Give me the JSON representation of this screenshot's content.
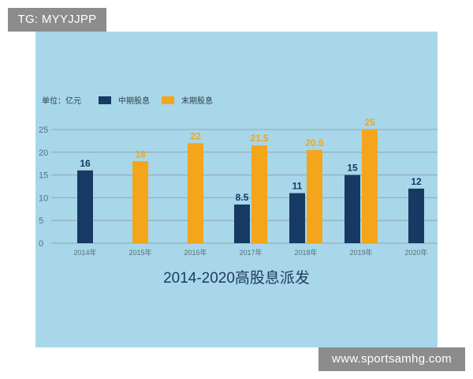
{
  "watermarks": {
    "top_left": "TG: MYYJJPP",
    "bottom_right": "www.sportsamhg.com"
  },
  "chart_data": {
    "type": "bar",
    "title": "2014-2020高股息派发",
    "unit_label": "单位：亿元",
    "categories": [
      "2014年",
      "2015年",
      "2016年",
      "2017年",
      "2018年",
      "2019年",
      "2020年"
    ],
    "series": [
      {
        "name": "中期股息",
        "values": [
          16,
          null,
          null,
          8.5,
          11,
          15,
          12
        ],
        "color": "#163a63",
        "label_color": "#163a63"
      },
      {
        "name": "末期股息",
        "values": [
          null,
          18,
          22,
          21.5,
          20.5,
          25,
          null
        ],
        "color": "#f3a51c",
        "label_color": "#f3a51c"
      }
    ],
    "data_labels": {
      "中期股息": [
        "16",
        "",
        "",
        "8.5",
        "11",
        "15",
        "12"
      ],
      "末期股息": [
        "",
        "18",
        "22",
        "21.5",
        "20.5",
        "25",
        ""
      ]
    },
    "ylim": [
      0,
      25
    ],
    "yticks": [
      0,
      5,
      10,
      15,
      20,
      25
    ],
    "grid": true,
    "legend_position": "top-left",
    "colors": {
      "background": "#a7d7e9",
      "grid": "#8fa6b2",
      "axis_text": "#5b6f7a",
      "title": "#1e3a5c"
    }
  }
}
